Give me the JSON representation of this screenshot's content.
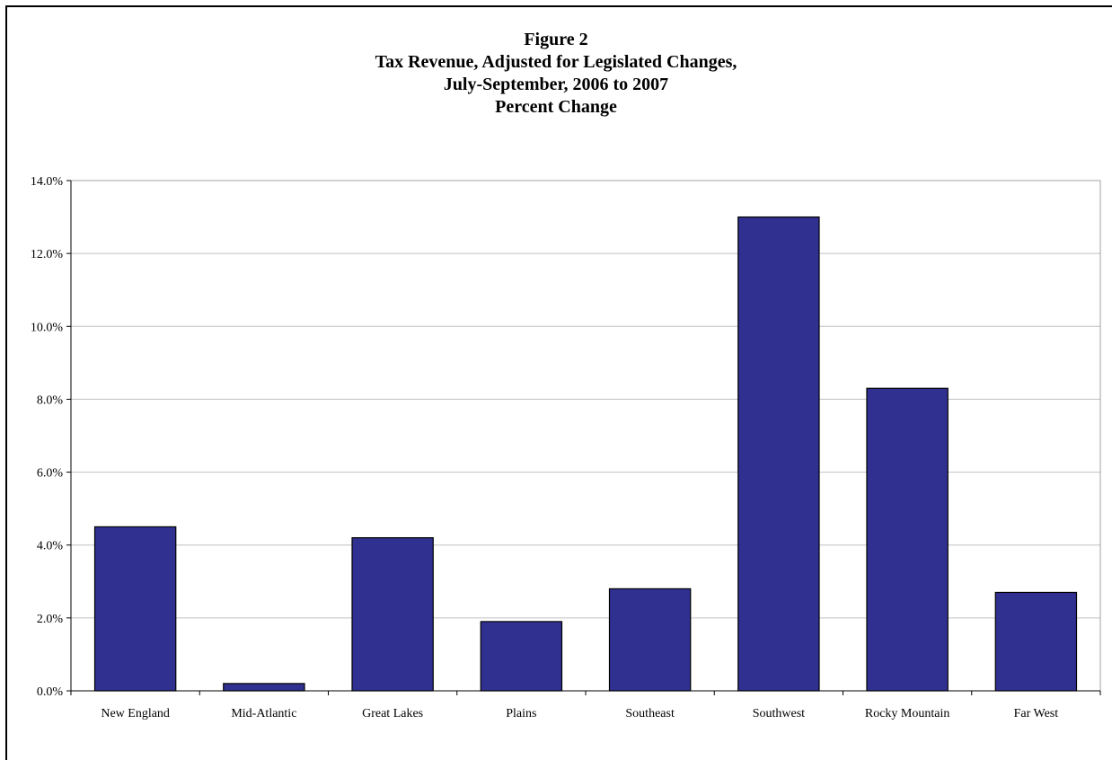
{
  "chart_data": {
    "type": "bar",
    "title_lines": [
      "Figure 2",
      "Tax Revenue, Adjusted for Legislated Changes,",
      "July-September, 2006 to 2007",
      "Percent Change"
    ],
    "xlabel": "",
    "ylabel": "",
    "categories": [
      "New England",
      "Mid-Atlantic",
      "Great Lakes",
      "Plains",
      "Southeast",
      "Southwest",
      "Rocky Mountain",
      "Far West"
    ],
    "values": [
      4.5,
      0.2,
      4.2,
      1.9,
      2.8,
      13.0,
      8.3,
      2.7
    ],
    "ylim": [
      0,
      14
    ],
    "yticks": [
      0,
      2,
      4,
      6,
      8,
      10,
      12,
      14
    ],
    "ytick_labels": [
      "0.0%",
      "2.0%",
      "4.0%",
      "6.0%",
      "8.0%",
      "10.0%",
      "12.0%",
      "14.0%"
    ],
    "grid": true,
    "legend": "none",
    "bar_color": "#303090",
    "bar_edge_color": "#000000"
  }
}
